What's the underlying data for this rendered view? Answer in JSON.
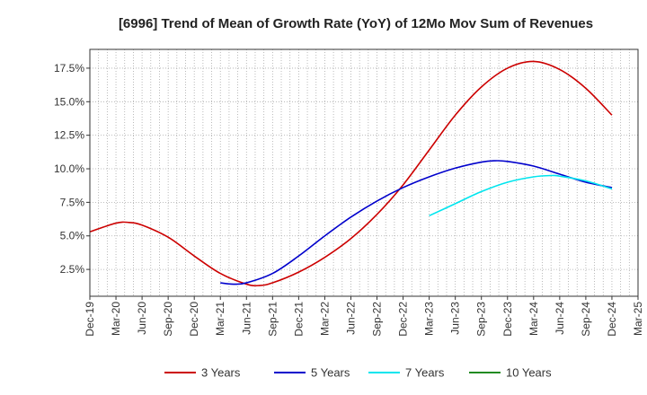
{
  "chart_data": {
    "type": "line",
    "title": "[6996]  Trend of Mean of Growth Rate (YoY) of 12Mo Mov Sum of Revenues",
    "xlabel": "",
    "ylabel": "",
    "x_ticks": [
      "Dec-19",
      "Mar-20",
      "Jun-20",
      "Sep-20",
      "Dec-20",
      "Mar-21",
      "Jun-21",
      "Sep-21",
      "Dec-21",
      "Mar-22",
      "Jun-22",
      "Sep-22",
      "Dec-22",
      "Mar-23",
      "Jun-23",
      "Sep-23",
      "Dec-23",
      "Mar-24",
      "Jun-24",
      "Sep-24",
      "Dec-24",
      "Mar-25"
    ],
    "y_ticks": [
      2.5,
      5.0,
      7.5,
      10.0,
      12.5,
      15.0,
      17.5
    ],
    "y_tick_labels": [
      "2.5%",
      "5.0%",
      "7.5%",
      "10.0%",
      "12.5%",
      "15.0%",
      "17.5%"
    ],
    "ylim": [
      0.5,
      18.9
    ],
    "grid": true,
    "legend_position": "bottom",
    "series": [
      {
        "name": "3 Years",
        "color": "#cc0000",
        "points": [
          [
            0,
            5.3
          ],
          [
            1,
            5.95
          ],
          [
            1.5,
            6.0
          ],
          [
            2,
            5.8
          ],
          [
            3,
            4.9
          ],
          [
            4,
            3.5
          ],
          [
            5,
            2.2
          ],
          [
            6,
            1.4
          ],
          [
            6.5,
            1.3
          ],
          [
            7,
            1.5
          ],
          [
            8,
            2.3
          ],
          [
            9,
            3.4
          ],
          [
            10,
            4.8
          ],
          [
            11,
            6.6
          ],
          [
            12,
            8.8
          ],
          [
            13,
            11.4
          ],
          [
            14,
            14.0
          ],
          [
            15,
            16.1
          ],
          [
            16,
            17.5
          ],
          [
            17,
            18.0
          ],
          [
            18,
            17.4
          ],
          [
            19,
            16.0
          ],
          [
            20,
            14.0
          ]
        ]
      },
      {
        "name": "5 Years",
        "color": "#0000cc",
        "points": [
          [
            5,
            1.5
          ],
          [
            5.5,
            1.4
          ],
          [
            6,
            1.5
          ],
          [
            7,
            2.2
          ],
          [
            8,
            3.5
          ],
          [
            9,
            5.0
          ],
          [
            10,
            6.4
          ],
          [
            11,
            7.6
          ],
          [
            12,
            8.6
          ],
          [
            13,
            9.4
          ],
          [
            14,
            10.05
          ],
          [
            15,
            10.5
          ],
          [
            15.5,
            10.6
          ],
          [
            16,
            10.55
          ],
          [
            17,
            10.2
          ],
          [
            18,
            9.6
          ],
          [
            19,
            9.0
          ],
          [
            20,
            8.6
          ]
        ]
      },
      {
        "name": "7 Years",
        "color": "#00e5ee",
        "points": [
          [
            13,
            6.5
          ],
          [
            14,
            7.4
          ],
          [
            15,
            8.3
          ],
          [
            16,
            9.0
          ],
          [
            17,
            9.4
          ],
          [
            17.7,
            9.5
          ],
          [
            18,
            9.45
          ],
          [
            19,
            9.1
          ],
          [
            20,
            8.5
          ]
        ]
      },
      {
        "name": "10 Years",
        "color": "#228b22",
        "points": []
      }
    ]
  }
}
